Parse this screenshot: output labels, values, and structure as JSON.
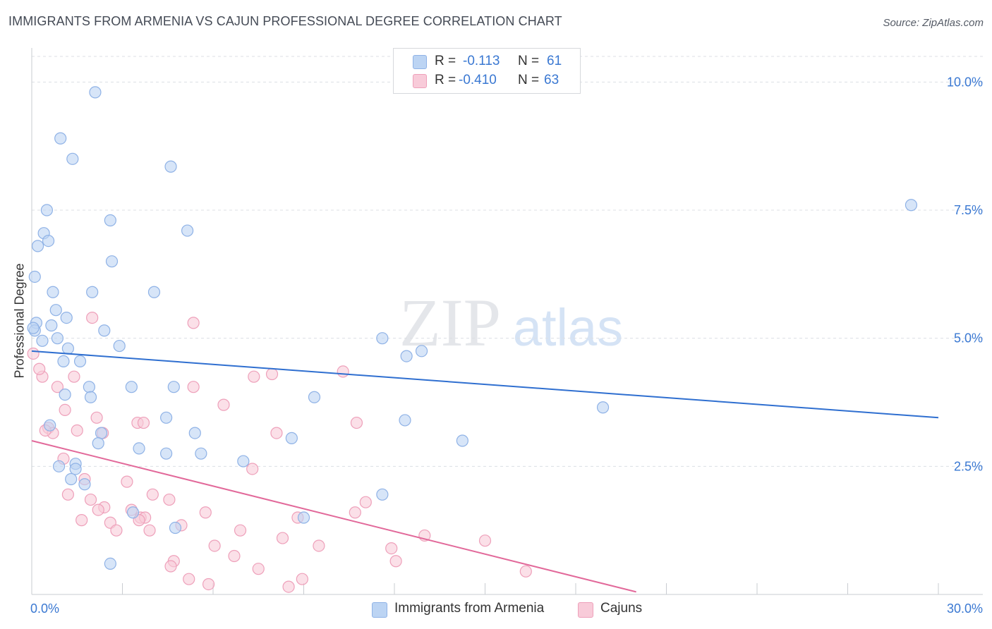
{
  "header": {
    "title": "IMMIGRANTS FROM ARMENIA VS CAJUN PROFESSIONAL DEGREE CORRELATION CHART",
    "source": "Source: ZipAtlas.com"
  },
  "watermark": {
    "zip": "ZIP",
    "atlas": "atlas"
  },
  "colors": {
    "blue_fill": "#bcd4f3",
    "blue_stroke": "#8fb2e6",
    "blue_line": "#2f6fd0",
    "pink_fill": "#f8cbd9",
    "pink_stroke": "#eea0ba",
    "pink_line": "#e2699a",
    "tick_label": "#3a78d2",
    "grid": "#dcdfe4"
  },
  "legend": {
    "rows": [
      {
        "r_label": "R =",
        "r_value": "-0.113",
        "n_label": "N =",
        "n_value": "61"
      },
      {
        "r_label": "R =",
        "r_value": "-0.410",
        "n_label": "N =",
        "n_value": "63"
      }
    ]
  },
  "bottom_legend": {
    "series1": "Immigrants from Armenia",
    "series2": "Cajuns"
  },
  "chart_data": {
    "type": "scatter",
    "title": "IMMIGRANTS FROM ARMENIA VS CAJUN PROFESSIONAL DEGREE CORRELATION CHART",
    "xlabel": "",
    "ylabel": "Professional Degree",
    "xlim": [
      0,
      30
    ],
    "ylim": [
      0,
      10.5
    ],
    "x_tick_labels": [
      {
        "value": 0,
        "label": "0.0%"
      },
      {
        "value": 30,
        "label": "30.0%"
      }
    ],
    "y_ticks": [
      {
        "value": 2.5,
        "label": "2.5%"
      },
      {
        "value": 5.0,
        "label": "5.0%"
      },
      {
        "value": 7.5,
        "label": "7.5%"
      },
      {
        "value": 10.0,
        "label": "10.0%"
      }
    ],
    "series": [
      {
        "name": "Immigrants from Armenia",
        "color": "blue",
        "trend": {
          "x": [
            0,
            30
          ],
          "y": [
            4.75,
            3.45
          ]
        },
        "points": [
          [
            2.1,
            9.8
          ],
          [
            0.95,
            8.9
          ],
          [
            1.35,
            8.5
          ],
          [
            4.6,
            8.35
          ],
          [
            0.5,
            7.5
          ],
          [
            2.6,
            7.3
          ],
          [
            5.15,
            7.1
          ],
          [
            0.4,
            7.05
          ],
          [
            0.55,
            6.9
          ],
          [
            0.2,
            6.8
          ],
          [
            2.65,
            6.5
          ],
          [
            0.1,
            6.2
          ],
          [
            4.05,
            5.9
          ],
          [
            0.7,
            5.9
          ],
          [
            2.0,
            5.9
          ],
          [
            0.8,
            5.55
          ],
          [
            1.15,
            5.4
          ],
          [
            0.15,
            5.3
          ],
          [
            0.65,
            5.25
          ],
          [
            0.1,
            5.15
          ],
          [
            2.4,
            5.15
          ],
          [
            0.85,
            5.0
          ],
          [
            0.35,
            4.95
          ],
          [
            2.9,
            4.85
          ],
          [
            1.2,
            4.8
          ],
          [
            11.6,
            5.0
          ],
          [
            12.4,
            4.65
          ],
          [
            12.9,
            4.75
          ],
          [
            1.05,
            4.55
          ],
          [
            1.6,
            4.55
          ],
          [
            3.3,
            4.05
          ],
          [
            4.7,
            4.05
          ],
          [
            1.9,
            4.05
          ],
          [
            1.1,
            3.9
          ],
          [
            1.95,
            3.85
          ],
          [
            9.35,
            3.85
          ],
          [
            18.9,
            3.65
          ],
          [
            4.45,
            3.45
          ],
          [
            12.35,
            3.4
          ],
          [
            0.6,
            3.3
          ],
          [
            2.3,
            3.15
          ],
          [
            5.4,
            3.15
          ],
          [
            8.6,
            3.05
          ],
          [
            14.25,
            3.0
          ],
          [
            2.2,
            2.95
          ],
          [
            3.55,
            2.85
          ],
          [
            5.6,
            2.75
          ],
          [
            4.45,
            2.75
          ],
          [
            7.0,
            2.6
          ],
          [
            1.45,
            2.55
          ],
          [
            0.9,
            2.5
          ],
          [
            1.45,
            2.45
          ],
          [
            1.3,
            2.25
          ],
          [
            1.75,
            2.15
          ],
          [
            11.6,
            1.95
          ],
          [
            3.35,
            1.6
          ],
          [
            9.0,
            1.5
          ],
          [
            4.75,
            1.3
          ],
          [
            2.6,
            0.6
          ],
          [
            29.1,
            7.6
          ],
          [
            0.05,
            5.2
          ]
        ]
      },
      {
        "name": "Cajuns",
        "color": "pink",
        "trend": {
          "x": [
            0,
            20
          ],
          "y": [
            3.0,
            0.05
          ]
        },
        "points": [
          [
            0.05,
            4.7
          ],
          [
            2.0,
            5.4
          ],
          [
            5.35,
            5.3
          ],
          [
            10.3,
            4.35
          ],
          [
            7.35,
            4.25
          ],
          [
            7.95,
            4.3
          ],
          [
            0.35,
            4.25
          ],
          [
            0.25,
            4.4
          ],
          [
            1.4,
            4.25
          ],
          [
            5.35,
            4.05
          ],
          [
            0.85,
            4.05
          ],
          [
            6.35,
            3.7
          ],
          [
            1.1,
            3.6
          ],
          [
            2.15,
            3.45
          ],
          [
            3.5,
            3.35
          ],
          [
            3.7,
            3.35
          ],
          [
            10.75,
            3.35
          ],
          [
            0.55,
            3.25
          ],
          [
            0.7,
            3.15
          ],
          [
            1.5,
            3.2
          ],
          [
            8.1,
            3.15
          ],
          [
            2.35,
            3.15
          ],
          [
            0.45,
            3.2
          ],
          [
            1.05,
            2.65
          ],
          [
            7.3,
            2.45
          ],
          [
            1.75,
            2.25
          ],
          [
            3.15,
            2.2
          ],
          [
            1.2,
            1.95
          ],
          [
            4.0,
            1.95
          ],
          [
            4.55,
            1.85
          ],
          [
            1.95,
            1.85
          ],
          [
            11.05,
            1.8
          ],
          [
            2.4,
            1.7
          ],
          [
            2.2,
            1.65
          ],
          [
            10.7,
            1.6
          ],
          [
            5.75,
            1.6
          ],
          [
            3.3,
            1.65
          ],
          [
            3.6,
            1.5
          ],
          [
            3.75,
            1.5
          ],
          [
            8.8,
            1.5
          ],
          [
            1.65,
            1.45
          ],
          [
            2.6,
            1.4
          ],
          [
            4.95,
            1.35
          ],
          [
            6.9,
            1.25
          ],
          [
            3.9,
            1.25
          ],
          [
            2.8,
            1.25
          ],
          [
            13.0,
            1.15
          ],
          [
            15.0,
            1.05
          ],
          [
            8.3,
            1.1
          ],
          [
            9.5,
            0.95
          ],
          [
            6.05,
            0.95
          ],
          [
            11.9,
            0.9
          ],
          [
            6.7,
            0.75
          ],
          [
            12.05,
            0.65
          ],
          [
            4.7,
            0.65
          ],
          [
            4.6,
            0.55
          ],
          [
            7.5,
            0.5
          ],
          [
            16.35,
            0.45
          ],
          [
            5.2,
            0.3
          ],
          [
            8.95,
            0.3
          ],
          [
            5.85,
            0.2
          ],
          [
            8.5,
            0.15
          ],
          [
            3.55,
            1.45
          ]
        ]
      }
    ]
  }
}
